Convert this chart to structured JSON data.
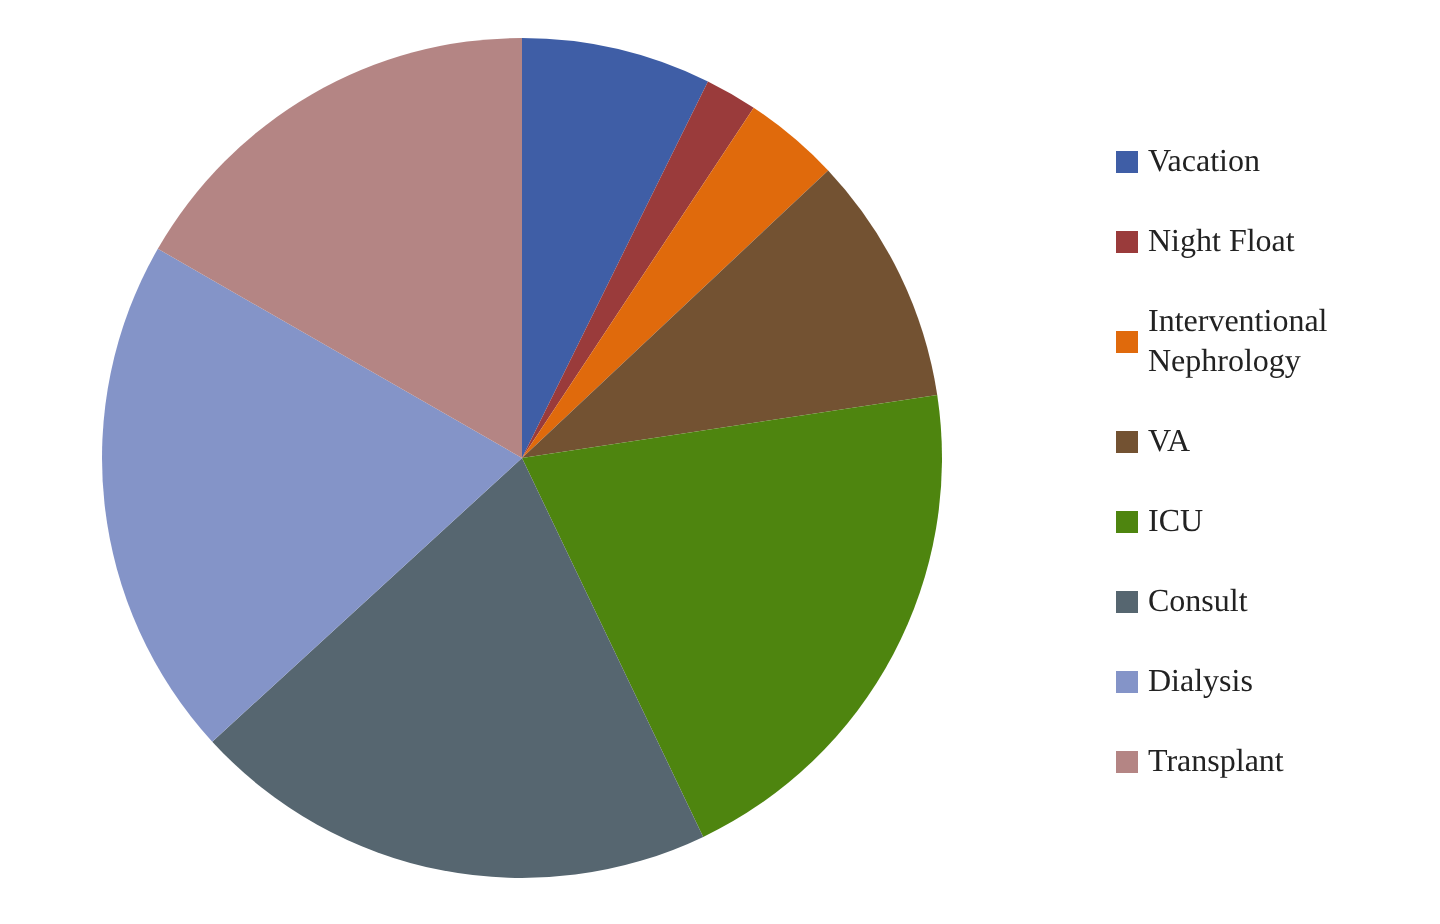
{
  "chart_data": {
    "type": "pie",
    "categories": [
      "Vacation",
      "Night Float",
      "Interventional Nephrology",
      "VA",
      "ICU",
      "Consult",
      "Dialysis",
      "Transplant"
    ],
    "values": [
      7.3,
      2.0,
      3.7,
      9.6,
      20.3,
      20.3,
      20.1,
      16.7
    ],
    "colors": [
      "#3f5ea6",
      "#9a3b3b",
      "#e06a0c",
      "#735232",
      "#4e850f",
      "#566670",
      "#8494c8",
      "#b48584"
    ],
    "legend": "right"
  }
}
